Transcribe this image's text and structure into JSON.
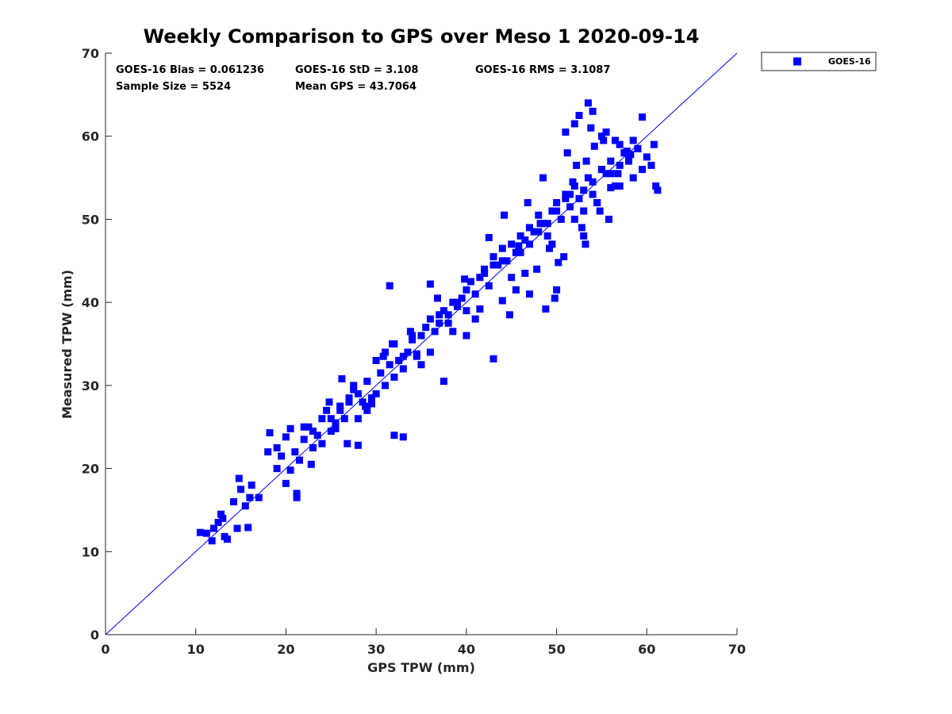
{
  "chart_data": {
    "type": "scatter",
    "title": "Weekly Comparison to GPS over Meso 1 2020-09-14",
    "xlabel": "GPS TPW (mm)",
    "ylabel": "Measured TPW (mm)",
    "xlim": [
      0,
      70
    ],
    "ylim": [
      0,
      70
    ],
    "xticks": [
      "0",
      "10",
      "20",
      "30",
      "40",
      "50",
      "60",
      "70"
    ],
    "yticks": [
      "0",
      "10",
      "20",
      "30",
      "40",
      "50",
      "60",
      "70"
    ],
    "grid": false,
    "legend_position": "outside top-right",
    "colors": {
      "points": "#0000ff",
      "reference_line": "#0000ff"
    },
    "reference_line": {
      "name": "1:1 line",
      "x": [
        0,
        70
      ],
      "y": [
        0,
        70
      ]
    },
    "stats": {
      "bias": "GOES-16 Bias = 0.061236",
      "std": "GOES-16 StD = 3.108",
      "rms": "GOES-16 RMS = 3.1087",
      "sample_size": "Sample Size = 5524",
      "mean_gps": "Mean GPS = 43.7064"
    },
    "series": [
      {
        "name": "GOES-16",
        "marker": "square",
        "x": [
          10.5,
          11.2,
          12.0,
          12.5,
          13.0,
          13.5,
          14.2,
          14.8,
          15.0,
          15.5,
          16.0,
          16.2,
          17.0,
          12.8,
          13.2,
          14.6,
          15.8,
          11.8,
          18.2,
          18.0,
          19.0,
          19.5,
          20.0,
          20.5,
          21.0,
          21.2,
          21.5,
          22.0,
          22.5,
          23.0,
          23.5,
          24.0,
          24.5,
          25.0,
          25.5,
          26.0,
          26.5,
          27.0,
          27.5,
          28.0,
          28.5,
          29.0,
          29.5,
          30.0,
          30.5,
          31.0,
          31.5,
          32.0,
          32.5,
          33.0,
          33.5,
          34.0,
          34.5,
          35.0,
          35.5,
          36.0,
          36.5,
          37.0,
          37.5,
          38.0,
          38.5,
          39.0,
          39.5,
          40.0,
          40.5,
          41.0,
          41.5,
          42.0,
          42.5,
          43.0,
          43.5,
          44.0,
          44.5,
          45.0,
          45.5,
          46.0,
          46.5,
          47.0,
          47.5,
          48.0,
          48.5,
          49.0,
          49.5,
          50.0,
          50.5,
          51.0,
          51.5,
          52.0,
          52.5,
          53.0,
          53.5,
          54.0,
          54.5,
          55.0,
          55.5,
          56.0,
          56.5,
          57.0,
          57.5,
          58.0,
          58.5,
          59.0,
          59.5,
          60.0,
          60.5,
          61.0,
          61.2,
          22.0,
          24.0,
          26.0,
          28.0,
          30.0,
          32.0,
          34.0,
          36.0,
          38.0,
          40.0,
          42.0,
          44.0,
          46.0,
          48.0,
          50.0,
          52.0,
          54.0,
          56.0,
          58.0,
          23.0,
          25.0,
          27.0,
          29.0,
          31.0,
          33.0,
          35.0,
          37.0,
          39.0,
          41.0,
          43.0,
          45.0,
          47.0,
          49.0,
          51.0,
          53.0,
          55.0,
          57.0,
          59.0,
          32.0,
          33.0,
          21.2,
          20.0,
          26.8,
          28.0,
          37.5,
          43.0,
          48.8,
          49.8,
          50.0,
          51.0,
          52.0,
          53.5,
          54.0,
          55.0,
          56.5,
          57.5,
          59.5,
          60.8,
          31.5,
          36.0,
          40.0,
          44.0,
          47.0,
          51.2,
          52.5,
          53.8,
          55.5,
          57.0,
          58.5,
          25.5,
          27.5,
          29.5,
          31.8,
          34.5,
          38.5,
          41.5,
          44.8,
          47.8,
          50.8,
          53.2,
          55.8,
          19.0,
          20.5,
          22.8,
          24.8,
          26.2,
          28.8,
          30.8,
          33.8,
          36.8,
          39.8,
          42.5,
          45.8,
          48.2,
          51.5,
          54.5,
          56.8,
          58.2,
          45.5,
          46.5,
          49.5,
          50.2,
          52.8,
          53.0,
          54.8,
          56.0,
          44.2,
          46.8,
          48.5,
          49.2,
          51.8,
          52.2,
          53.3,
          54.2,
          55.2,
          57.8
        ],
        "y": [
          12.3,
          12.2,
          12.8,
          13.5,
          14.0,
          11.5,
          16.0,
          18.8,
          17.5,
          15.5,
          16.5,
          18.0,
          16.5,
          14.5,
          11.8,
          12.8,
          12.9,
          11.3,
          24.3,
          22.0,
          20.0,
          21.5,
          23.8,
          24.8,
          22.0,
          16.5,
          21.0,
          23.5,
          25.0,
          24.5,
          24.0,
          26.0,
          27.0,
          26.0,
          25.5,
          27.5,
          26.0,
          28.5,
          30.0,
          29.0,
          28.0,
          30.5,
          28.5,
          33.0,
          31.5,
          34.0,
          32.5,
          35.0,
          33.0,
          32.0,
          34.0,
          35.5,
          33.5,
          36.0,
          37.0,
          38.0,
          36.5,
          37.5,
          39.0,
          38.5,
          40.0,
          39.5,
          40.5,
          41.5,
          42.5,
          41.0,
          43.0,
          44.0,
          42.0,
          45.5,
          44.5,
          46.5,
          45.0,
          47.0,
          46.0,
          48.0,
          47.5,
          49.0,
          48.5,
          50.5,
          49.5,
          48.0,
          51.0,
          52.0,
          50.0,
          53.0,
          51.5,
          54.0,
          52.5,
          53.5,
          55.0,
          54.5,
          52.0,
          56.0,
          55.5,
          57.0,
          54.0,
          56.5,
          58.0,
          57.5,
          55.0,
          58.5,
          56.0,
          57.5,
          56.5,
          54.0,
          53.5,
          25.0,
          23.0,
          27.0,
          26.0,
          29.0,
          31.0,
          36.0,
          34.0,
          37.5,
          39.0,
          43.5,
          45.0,
          46.0,
          48.5,
          51.0,
          50.0,
          53.0,
          55.5,
          57.0,
          22.5,
          24.5,
          28.0,
          27.0,
          30.0,
          33.5,
          32.5,
          38.5,
          40.0,
          38.0,
          44.5,
          43.0,
          47.0,
          49.5,
          52.5,
          51.0,
          56.0,
          54.0,
          58.5,
          24.0,
          23.8,
          17.0,
          18.2,
          23.0,
          22.8,
          30.5,
          33.2,
          39.2,
          40.5,
          41.5,
          60.5,
          61.5,
          64.0,
          63.0,
          60.0,
          59.5,
          58.0,
          62.3,
          59.0,
          42.0,
          42.2,
          36.0,
          40.2,
          41.0,
          58.0,
          62.5,
          61.0,
          60.5,
          59.0,
          59.5,
          24.8,
          29.5,
          27.8,
          35.0,
          33.8,
          36.5,
          39.2,
          38.5,
          44.0,
          45.5,
          47.0,
          50.0,
          22.5,
          19.8,
          20.5,
          28.0,
          30.8,
          27.5,
          33.5,
          36.5,
          40.5,
          42.8,
          47.8,
          46.8,
          49.5,
          53.0,
          52.0,
          55.5,
          57.8,
          41.5,
          43.5,
          47.0,
          44.8,
          49.0,
          48.0,
          51.0,
          53.8,
          50.5,
          52.0,
          55.0,
          46.5,
          54.5,
          56.5,
          57.0,
          58.8,
          59.5,
          58.2
        ]
      }
    ]
  }
}
